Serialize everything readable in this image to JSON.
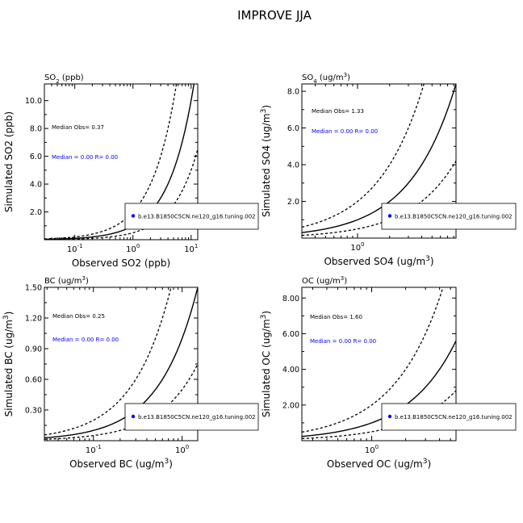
{
  "figure_title": "IMPROVE JJA",
  "legend_label": "b.e13.B1850C5CN.ne120_g16.tuning.002",
  "colors": {
    "axis": "#000000",
    "stats_blue": "#0000ff",
    "marker": "#0000ff"
  },
  "chart_data": [
    {
      "type": "scatter",
      "title": "SO2 (ppb)",
      "title_parts": [
        "SO",
        "2",
        " (ppb)"
      ],
      "xlabel": "Observed SO2 (ppb)",
      "ylabel": "Simulated SO2 (ppb)",
      "xscale": "log",
      "xlim": [
        0.03,
        13
      ],
      "ylim": [
        0,
        11.2
      ],
      "xticks": [
        {
          "value": 0.1,
          "base": "10",
          "exp": "-1"
        },
        {
          "value": 1,
          "base": "10",
          "exp": "0"
        },
        {
          "value": 10,
          "base": "10",
          "exp": "1"
        }
      ],
      "yticks": [
        2,
        4,
        6,
        8,
        10
      ],
      "ytick_labels": [
        "2.0",
        "4.0",
        "6.0",
        "8.0",
        "10.0"
      ],
      "median_obs": "Median Obs= 0.37",
      "model_stats": "Median = 0.00 R= 0.00",
      "reference_lines": [
        "1:1",
        "2:1",
        "1:2"
      ],
      "points": [],
      "grid": false,
      "legend": "bottom-right"
    },
    {
      "type": "scatter",
      "title": "SO4 (ug/m3)",
      "title_parts": [
        "SO",
        "4",
        " (ug/m",
        "3",
        ")"
      ],
      "xlabel": "Observed SO4 (ug/m3)",
      "xlabel_parts": [
        "Observed SO4 (ug/m",
        "3",
        ")"
      ],
      "ylabel": "Simulated SO4 (ug/m3)",
      "ylabel_parts": [
        "Simulated SO4 (ug/m",
        "3",
        ")"
      ],
      "xscale": "log",
      "xlim": [
        0.3,
        8.4
      ],
      "ylim": [
        0,
        8.4
      ],
      "xticks": [
        {
          "value": 1,
          "base": "10",
          "exp": "0"
        }
      ],
      "yticks": [
        2,
        4,
        6,
        8
      ],
      "ytick_labels": [
        "2.0",
        "4.0",
        "6.0",
        "8.0"
      ],
      "median_obs": "Median Obs= 1.33",
      "model_stats": "Median = 0.00 R= 0.00",
      "reference_lines": [
        "1:1",
        "2:1",
        "1:2"
      ],
      "points": [],
      "grid": false,
      "legend": "bottom-right"
    },
    {
      "type": "scatter",
      "title": "BC (ug/m3)",
      "title_parts": [
        "BC (ug/m",
        "3",
        ")"
      ],
      "xlabel": "Observed BC (ug/m3)",
      "xlabel_parts": [
        "Observed BC (ug/m",
        "3",
        ")"
      ],
      "ylabel": "Simulated BC (ug/m3)",
      "ylabel_parts": [
        "Simulated BC (ug/m",
        "3",
        ")"
      ],
      "xscale": "log",
      "xlim": [
        0.028,
        1.5
      ],
      "ylim": [
        0,
        1.5
      ],
      "xticks": [
        {
          "value": 0.1,
          "base": "10",
          "exp": "-1"
        },
        {
          "value": 1,
          "base": "10",
          "exp": "0"
        }
      ],
      "yticks": [
        0.3,
        0.6,
        0.9,
        1.2,
        1.5
      ],
      "ytick_labels": [
        "0.30",
        "0.60",
        "0.90",
        "1.20",
        "1.50"
      ],
      "median_obs": "Median Obs= 0.25",
      "model_stats": "Median = 0.00 R= 0.00",
      "reference_lines": [
        "1:1",
        "2:1",
        "1:2"
      ],
      "points": [],
      "grid": false,
      "legend": "bottom-right"
    },
    {
      "type": "scatter",
      "title": "OC (ug/m3)",
      "title_parts": [
        "OC (ug/m",
        "3",
        ")"
      ],
      "xlabel": "Observed OC (ug/m3)",
      "xlabel_parts": [
        "Observed OC (ug/m",
        "3",
        ")"
      ],
      "ylabel": "Simulated OC (ug/m3)",
      "ylabel_parts": [
        "Simulated OC (ug/m",
        "3",
        ")"
      ],
      "xscale": "log",
      "xlim": [
        0.24,
        5.6
      ],
      "ylim": [
        0,
        8.6
      ],
      "xticks": [
        {
          "value": 1,
          "base": "10",
          "exp": "0"
        }
      ],
      "yticks": [
        2,
        4,
        6,
        8
      ],
      "ytick_labels": [
        "2.00",
        "4.00",
        "6.00",
        "8.00"
      ],
      "median_obs": "Median Obs= 1.60",
      "model_stats": "Median = 0.00 R= 0.00",
      "reference_lines": [
        "1:1",
        "2:1",
        "1:2"
      ],
      "points": [],
      "grid": false,
      "legend": "bottom-right"
    }
  ]
}
